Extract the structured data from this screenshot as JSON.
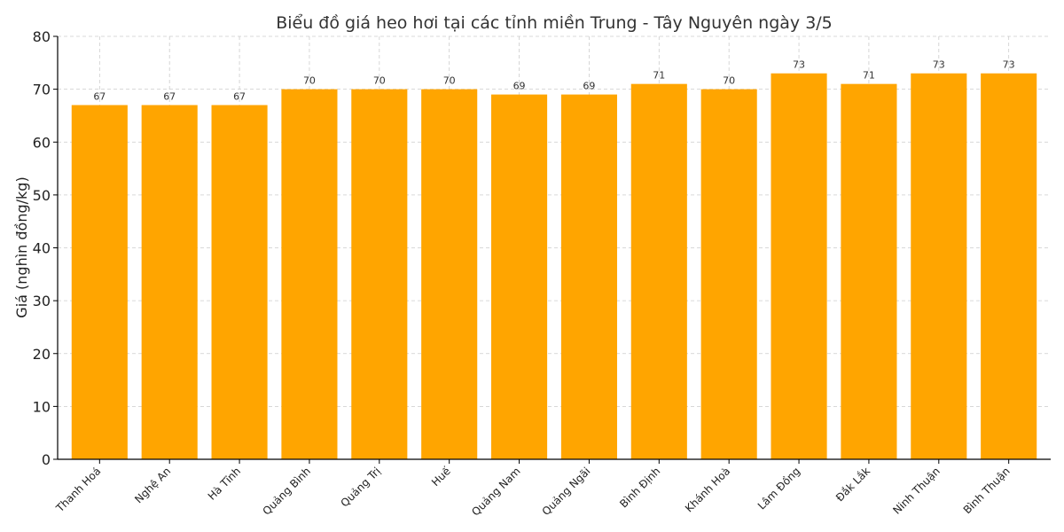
{
  "chart_data": {
    "type": "bar",
    "title": "Biểu đồ giá heo hơi tại các tỉnh miền Trung - Tây Nguyên ngày 3/5",
    "xlabel": "",
    "ylabel": "Giá (nghìn đồng/kg)",
    "ylim": [
      0,
      80
    ],
    "yticks": [
      0,
      10,
      20,
      30,
      40,
      50,
      60,
      70,
      80
    ],
    "grid": true,
    "bar_color": "#FFA500",
    "categories": [
      "Thanh Hoá",
      "Nghệ An",
      "Hà Tĩnh",
      "Quảng Bình",
      "Quảng Trị",
      "Huế",
      "Quảng Nam",
      "Quảng Ngãi",
      "Bình Định",
      "Khánh Hoà",
      "Lâm Đồng",
      "Đắk Lắk",
      "Ninh Thuận",
      "Bình Thuận"
    ],
    "values": [
      67,
      67,
      67,
      70,
      70,
      70,
      69,
      69,
      71,
      70,
      73,
      71,
      73,
      73
    ]
  }
}
